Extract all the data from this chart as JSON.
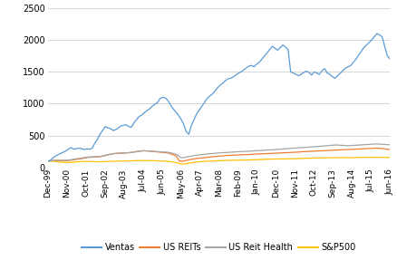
{
  "title": "",
  "x_labels": [
    "Dec-99",
    "Nov-00",
    "Oct-01",
    "Sep-02",
    "Aug-03",
    "Jul-04",
    "Jun-05",
    "May-06",
    "Apr-07",
    "Mar-08",
    "Feb-09",
    "Jan-10",
    "Dec-10",
    "Nov-11",
    "Oct-12",
    "Sep-13",
    "Aug-14",
    "Jul-15",
    "Jun-16"
  ],
  "ylim": [
    0,
    2500
  ],
  "yticks": [
    0,
    500,
    1000,
    1500,
    2000,
    2500
  ],
  "colors": {
    "Ventas": "#5B9BD5",
    "US REITs": "#ED7D31",
    "US Reit Health": "#A5A5A5",
    "S&P500": "#FFC000"
  },
  "legend_labels": [
    "Ventas",
    "US REITs",
    "US Reit Health",
    "S&P500"
  ],
  "background_color": "#FFFFFF",
  "grid_color": "#D0D0D0",
  "ventas": [
    100,
    110,
    150,
    180,
    200,
    220,
    240,
    260,
    290,
    310,
    285,
    295,
    300,
    295,
    280,
    290,
    285,
    300,
    380,
    440,
    520,
    580,
    640,
    620,
    610,
    580,
    590,
    620,
    650,
    660,
    670,
    640,
    630,
    700,
    750,
    800,
    820,
    860,
    890,
    920,
    960,
    990,
    1020,
    1080,
    1100,
    1090,
    1050,
    980,
    920,
    870,
    820,
    760,
    680,
    560,
    520,
    660,
    750,
    840,
    900,
    960,
    1020,
    1080,
    1120,
    1150,
    1200,
    1250,
    1290,
    1320,
    1360,
    1390,
    1400,
    1420,
    1450,
    1480,
    1500,
    1530,
    1560,
    1590,
    1600,
    1580,
    1620,
    1650,
    1700,
    1750,
    1800,
    1850,
    1900,
    1870,
    1840,
    1880,
    1920,
    1890,
    1850,
    1500,
    1480,
    1460,
    1440,
    1460,
    1490,
    1510,
    1490,
    1450,
    1500,
    1480,
    1460,
    1520,
    1550,
    1480,
    1460,
    1420,
    1400,
    1440,
    1480,
    1520,
    1560,
    1580,
    1600,
    1650,
    1700,
    1760,
    1820,
    1880,
    1920,
    1960,
    2000,
    2050,
    2100,
    2080,
    2050,
    1900,
    1750,
    1700
  ],
  "us_reits": [
    100,
    105,
    108,
    110,
    108,
    105,
    108,
    112,
    120,
    128,
    135,
    145,
    155,
    160,
    162,
    165,
    170,
    180,
    195,
    205,
    215,
    220,
    222,
    225,
    228,
    232,
    240,
    250,
    258,
    262,
    260,
    255,
    250,
    245,
    240,
    235,
    230,
    220,
    200,
    180,
    100,
    95,
    110,
    120,
    130,
    138,
    145,
    150,
    155,
    162,
    168,
    172,
    176,
    180,
    185,
    188,
    190,
    193,
    195,
    198,
    200,
    202,
    205,
    208,
    210,
    212,
    215,
    218,
    220,
    222,
    225,
    228,
    230,
    232,
    235,
    238,
    240,
    245,
    248,
    250,
    252,
    255,
    258,
    260,
    262,
    265,
    268,
    270,
    272,
    275,
    278,
    280,
    282,
    285,
    288,
    290,
    292,
    295,
    298,
    300,
    302,
    298,
    295,
    285,
    280
  ],
  "us_reit_health": [
    100,
    105,
    110,
    112,
    110,
    112,
    115,
    120,
    130,
    138,
    145,
    155,
    162,
    165,
    168,
    170,
    175,
    185,
    200,
    210,
    218,
    222,
    225,
    228,
    230,
    234,
    240,
    248,
    255,
    260,
    258,
    254,
    250,
    248,
    245,
    242,
    238,
    230,
    215,
    198,
    155,
    152,
    165,
    175,
    185,
    192,
    198,
    205,
    210,
    215,
    220,
    225,
    228,
    232,
    235,
    238,
    242,
    245,
    248,
    250,
    252,
    255,
    258,
    262,
    265,
    268,
    272,
    275,
    278,
    282,
    286,
    290,
    294,
    298,
    302,
    305,
    308,
    312,
    316,
    320,
    325,
    328,
    332,
    336,
    340,
    345,
    350,
    352,
    348,
    345,
    342,
    342,
    345,
    348,
    352,
    355,
    358,
    362,
    365,
    368,
    365,
    362,
    358,
    355
  ],
  "sp500": [
    100,
    98,
    94,
    88,
    82,
    78,
    76,
    78,
    82,
    88,
    92,
    95,
    95,
    93,
    90,
    88,
    88,
    90,
    92,
    94,
    96,
    98,
    100,
    102,
    102,
    103,
    105,
    106,
    107,
    108,
    107,
    106,
    105,
    102,
    100,
    98,
    95,
    90,
    82,
    72,
    55,
    52,
    62,
    70,
    78,
    84,
    90,
    94,
    98,
    100,
    102,
    104,
    106,
    108,
    110,
    112,
    112,
    113,
    114,
    115,
    116,
    118,
    120,
    122,
    124,
    126,
    128,
    130,
    132,
    132,
    133,
    134,
    135,
    136,
    137,
    138,
    140,
    142,
    144,
    145,
    146,
    147,
    148,
    149,
    150,
    151,
    152,
    153,
    154,
    155,
    154,
    153,
    154,
    155,
    156,
    157,
    158,
    158,
    159,
    160,
    158,
    157,
    156,
    155
  ]
}
